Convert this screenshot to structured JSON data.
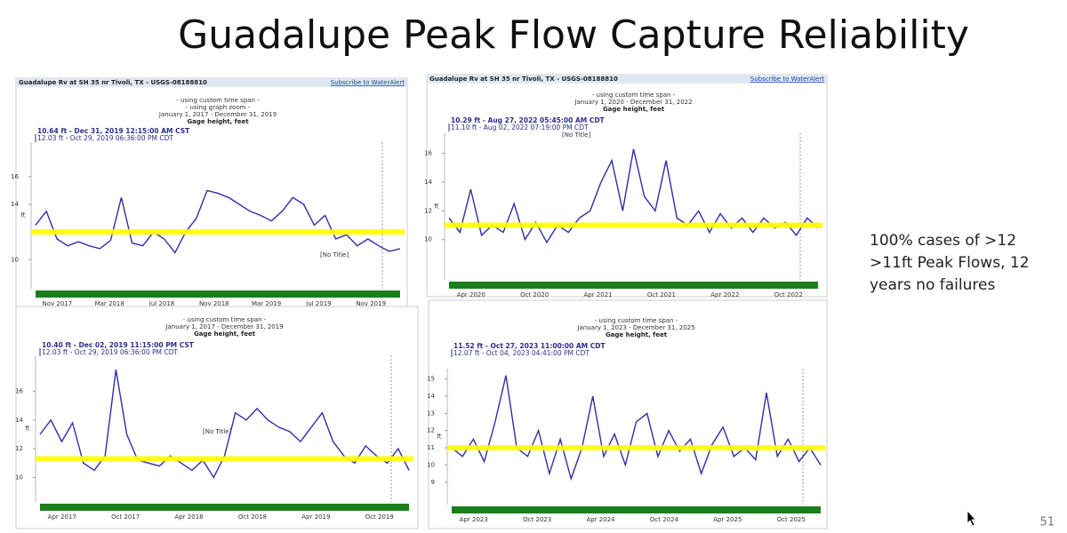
{
  "title": "Guadalupe Peak Flow Capture Reliability",
  "note": [
    "100% cases of >12",
    ">11ft Peak Flows, 12",
    "years no failures"
  ],
  "page_number": "51",
  "panels": [
    {
      "header": "Guadalupe Rv at SH 35 nr Tivoli, TX - USGS-08188810",
      "link": "Subscribe to WaterAlert",
      "subtitle": [
        "- using custom time span -",
        "- using graph zoom -",
        "January 1, 2017 - December 31, 2019",
        "Gage height, feet"
      ],
      "readouts": [
        "10.64 ft - Dec 31, 2019 12:15:00 AM CST",
        "12.03 ft - Oct 29, 2019 06:36:00 PM CDT"
      ],
      "y_label": "ft",
      "no_title": "[No Title]",
      "ylim": [
        7.9,
        18.5
      ],
      "yticks": [
        16,
        14,
        10
      ],
      "threshold": 12,
      "xticks": [
        "Nov 2017",
        "Mar 2018",
        "Jul 2018",
        "Nov 2018",
        "Mar 2019",
        "Jul 2019",
        "Nov 2019"
      ],
      "values": [
        12.5,
        13.5,
        11.5,
        11,
        11.3,
        11,
        10.8,
        11.4,
        14.5,
        11.2,
        11,
        12,
        11.5,
        10.5,
        12,
        13,
        15,
        14.8,
        14.5,
        14,
        13.5,
        13.2,
        12.8,
        13.5,
        14.5,
        14,
        12.5,
        13.2,
        11.5,
        11.8,
        11,
        11.5,
        11,
        10.6,
        10.8
      ]
    },
    {
      "header": "Guadalupe Rv at SH 35 nr Tivoli, TX - USGS-08188810",
      "link": "Subscribe to WaterAlert",
      "subtitle": [
        "- using custom time span -",
        "January 1, 2020 - December 31, 2022",
        "Gage height, feet"
      ],
      "readouts": [
        "10.29 ft - Aug 27, 2022 05:45:00 AM CDT",
        "11.10 ft - Aug 02, 2022 07:19:00 PM CDT"
      ],
      "y_label": "ft",
      "no_title": "[No Title]",
      "ylim": [
        7.2,
        17.4
      ],
      "yticks": [
        16,
        14,
        12,
        10
      ],
      "threshold": 11,
      "xticks": [
        "Apr 2020",
        "Oct 2020",
        "Apr 2021",
        "Oct 2021",
        "Apr 2022",
        "Oct 2022"
      ],
      "values": [
        11.5,
        10.5,
        13.5,
        10.3,
        11,
        10.5,
        12.5,
        10,
        11.2,
        9.8,
        11,
        10.5,
        11.5,
        12,
        14,
        15.5,
        12,
        16.3,
        13,
        12,
        15.5,
        11.5,
        11,
        12,
        10.5,
        11.8,
        10.8,
        11.5,
        10.5,
        11.5,
        10.8,
        11.2,
        10.3,
        11.5,
        10.8
      ]
    },
    {
      "subtitle": [
        "- using custom time span -",
        "January 1, 2017 - December 31, 2019",
        "Gage height, feet"
      ],
      "readouts": [
        "10.40 ft - Dec 02, 2019 11:15:00 PM CST",
        "12.03 ft - Oct 29, 2019 06:36:00 PM CDT"
      ],
      "y_label": "ft",
      "no_title": "[No Title]",
      "ylim": [
        8.3,
        18.5
      ],
      "yticks": [
        16,
        14,
        12,
        10
      ],
      "threshold": 11.3,
      "xticks": [
        "Apr 2017",
        "Oct 2017",
        "Apr 2018",
        "Oct 2018",
        "Apr 2019",
        "Oct 2019"
      ],
      "values": [
        13,
        14,
        12.5,
        13.8,
        11,
        10.5,
        11.5,
        17.5,
        13,
        11.2,
        11,
        10.8,
        11.5,
        11,
        10.5,
        11.2,
        10,
        11.5,
        14.5,
        14,
        14.8,
        14,
        13.5,
        13.2,
        12.5,
        13.5,
        14.5,
        12.5,
        11.5,
        11,
        12.2,
        11.5,
        11,
        12,
        10.5
      ]
    },
    {
      "subtitle": [
        "- using custom time span -",
        "January 1, 2023 - December 31, 2025",
        "Gage height, feet"
      ],
      "readouts": [
        "11.52 ft - Oct 27, 2023 11:00:00 AM CDT",
        "12.07 ft - Oct 04, 2023 04:41:00 PM CDT"
      ],
      "y_label": "ft",
      "ylim": [
        7.7,
        15.6
      ],
      "yticks": [
        15,
        14,
        13,
        12,
        11,
        10,
        9
      ],
      "threshold": 11,
      "xticks": [
        "Apr 2023",
        "Oct 2023",
        "Apr 2024",
        "Oct 2024",
        "Apr 2025",
        "Oct 2025"
      ],
      "values": [
        11,
        10.5,
        11.5,
        10.2,
        12.5,
        15.2,
        11,
        10.5,
        12,
        9.5,
        11.5,
        9.2,
        11,
        14,
        10.5,
        11.8,
        10,
        12.5,
        13,
        10.5,
        12,
        10.8,
        11.5,
        9.5,
        11.2,
        12.2,
        10.5,
        11,
        10.3,
        14.2,
        10.5,
        11.5,
        10.2,
        11,
        10
      ]
    }
  ]
}
